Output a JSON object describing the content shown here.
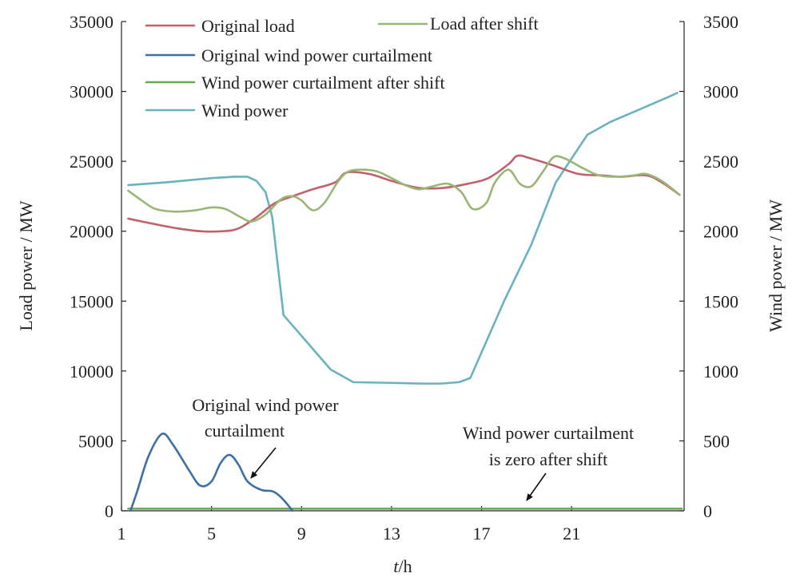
{
  "chart_data": {
    "type": "line",
    "title": "",
    "xlabel_italic": "t",
    "xlabel_rest": "/h",
    "ylabel_left": "Load power / MW",
    "ylabel_right": "Wind power / MW",
    "xlim": [
      1,
      26
    ],
    "ylim_left": [
      0,
      35000
    ],
    "ylim_right": [
      0,
      3500
    ],
    "x_ticks": [
      1,
      5,
      9,
      13,
      17,
      21
    ],
    "y_left_ticks": [
      0,
      5000,
      10000,
      15000,
      20000,
      25000,
      30000,
      35000
    ],
    "y_right_ticks": [
      0,
      500,
      1000,
      1500,
      2000,
      2500,
      3000,
      3500
    ],
    "legend_placement": "top-left",
    "grid": false,
    "series": [
      {
        "name": "Original load",
        "axis": "left",
        "color": "#c0626e",
        "points": [
          [
            1.3,
            20900
          ],
          [
            2.5,
            20500
          ],
          [
            3.5,
            20200
          ],
          [
            4.5,
            20000
          ],
          [
            5.5,
            20000
          ],
          [
            6.2,
            20200
          ],
          [
            7,
            21000
          ],
          [
            7.8,
            22000
          ],
          [
            8.6,
            22500
          ],
          [
            9.5,
            23000
          ],
          [
            10.5,
            23500
          ],
          [
            11,
            24200
          ],
          [
            12,
            24100
          ],
          [
            13,
            23600
          ],
          [
            14.2,
            23100
          ],
          [
            15.3,
            23100
          ],
          [
            16.4,
            23400
          ],
          [
            17.3,
            23800
          ],
          [
            18.2,
            24800
          ],
          [
            18.6,
            25400
          ],
          [
            19.2,
            25200
          ],
          [
            20.2,
            24700
          ],
          [
            21.3,
            24100
          ],
          [
            22.3,
            24000
          ],
          [
            23.2,
            23900
          ],
          [
            24.3,
            24000
          ],
          [
            25,
            23500
          ],
          [
            25.8,
            22600
          ]
        ]
      },
      {
        "name": "Load after shift",
        "axis": "left",
        "color": "#9ab676",
        "points": [
          [
            1.3,
            22900
          ],
          [
            1.9,
            22200
          ],
          [
            2.5,
            21600
          ],
          [
            3.4,
            21400
          ],
          [
            4.3,
            21500
          ],
          [
            5,
            21700
          ],
          [
            5.6,
            21600
          ],
          [
            6.3,
            21000
          ],
          [
            6.8,
            20700
          ],
          [
            7.4,
            21200
          ],
          [
            8.1,
            22300
          ],
          [
            8.6,
            22500
          ],
          [
            9,
            22200
          ],
          [
            9.5,
            21500
          ],
          [
            10,
            22000
          ],
          [
            10.6,
            23500
          ],
          [
            11,
            24200
          ],
          [
            11.5,
            24400
          ],
          [
            12.3,
            24300
          ],
          [
            13,
            23800
          ],
          [
            13.6,
            23300
          ],
          [
            14.2,
            23000
          ],
          [
            14.8,
            23200
          ],
          [
            15.5,
            23400
          ],
          [
            16.1,
            22800
          ],
          [
            16.6,
            21600
          ],
          [
            17.2,
            22000
          ],
          [
            17.6,
            23500
          ],
          [
            18.2,
            24400
          ],
          [
            18.7,
            23400
          ],
          [
            19.2,
            23200
          ],
          [
            19.7,
            24200
          ],
          [
            20.2,
            25300
          ],
          [
            20.7,
            25200
          ],
          [
            21.4,
            24600
          ],
          [
            22.2,
            24000
          ],
          [
            23,
            23900
          ],
          [
            23.8,
            24000
          ],
          [
            24.3,
            24100
          ],
          [
            25,
            23600
          ],
          [
            25.8,
            22600
          ]
        ]
      },
      {
        "name": "Original wind power curtailment",
        "axis": "left",
        "color": "#3e6fa6",
        "points": [
          [
            1.4,
            0
          ],
          [
            1.7,
            1400
          ],
          [
            2.2,
            3900
          ],
          [
            2.8,
            5500
          ],
          [
            3.3,
            4700
          ],
          [
            4,
            2900
          ],
          [
            4.5,
            1800
          ],
          [
            5,
            2100
          ],
          [
            5.4,
            3400
          ],
          [
            5.8,
            4000
          ],
          [
            6.2,
            3300
          ],
          [
            6.6,
            2100
          ],
          [
            7.2,
            1500
          ],
          [
            7.7,
            1400
          ],
          [
            8,
            1100
          ],
          [
            8.3,
            600
          ],
          [
            8.6,
            0
          ]
        ]
      },
      {
        "name": "Wind power curtailment after shift",
        "axis": "left",
        "color": "#6aa55c",
        "points": [
          [
            1.3,
            150
          ],
          [
            25.9,
            150
          ]
        ]
      },
      {
        "name": "Wind power",
        "axis": "right",
        "color": "#6ab3bd",
        "points": [
          [
            1.3,
            2330
          ],
          [
            3,
            2350
          ],
          [
            5,
            2380
          ],
          [
            6,
            2390
          ],
          [
            6.6,
            2390
          ],
          [
            7,
            2360
          ],
          [
            7.4,
            2280
          ],
          [
            7.7,
            2100
          ],
          [
            8.2,
            1400
          ],
          [
            10.3,
            1010
          ],
          [
            11.3,
            920
          ],
          [
            13,
            915
          ],
          [
            14.3,
            910
          ],
          [
            15.2,
            910
          ],
          [
            16,
            920
          ],
          [
            16.5,
            950
          ],
          [
            18,
            1500
          ],
          [
            19.2,
            1900
          ],
          [
            20.3,
            2350
          ],
          [
            21.7,
            2690
          ],
          [
            22.7,
            2780
          ],
          [
            24,
            2870
          ],
          [
            25.3,
            2960
          ],
          [
            25.7,
            2990
          ]
        ]
      }
    ],
    "annotations": [
      {
        "lines": [
          "Original wind power",
          "curtailment"
        ]
      },
      {
        "lines": [
          "Wind power curtailment",
          "is zero after shift"
        ]
      }
    ]
  }
}
